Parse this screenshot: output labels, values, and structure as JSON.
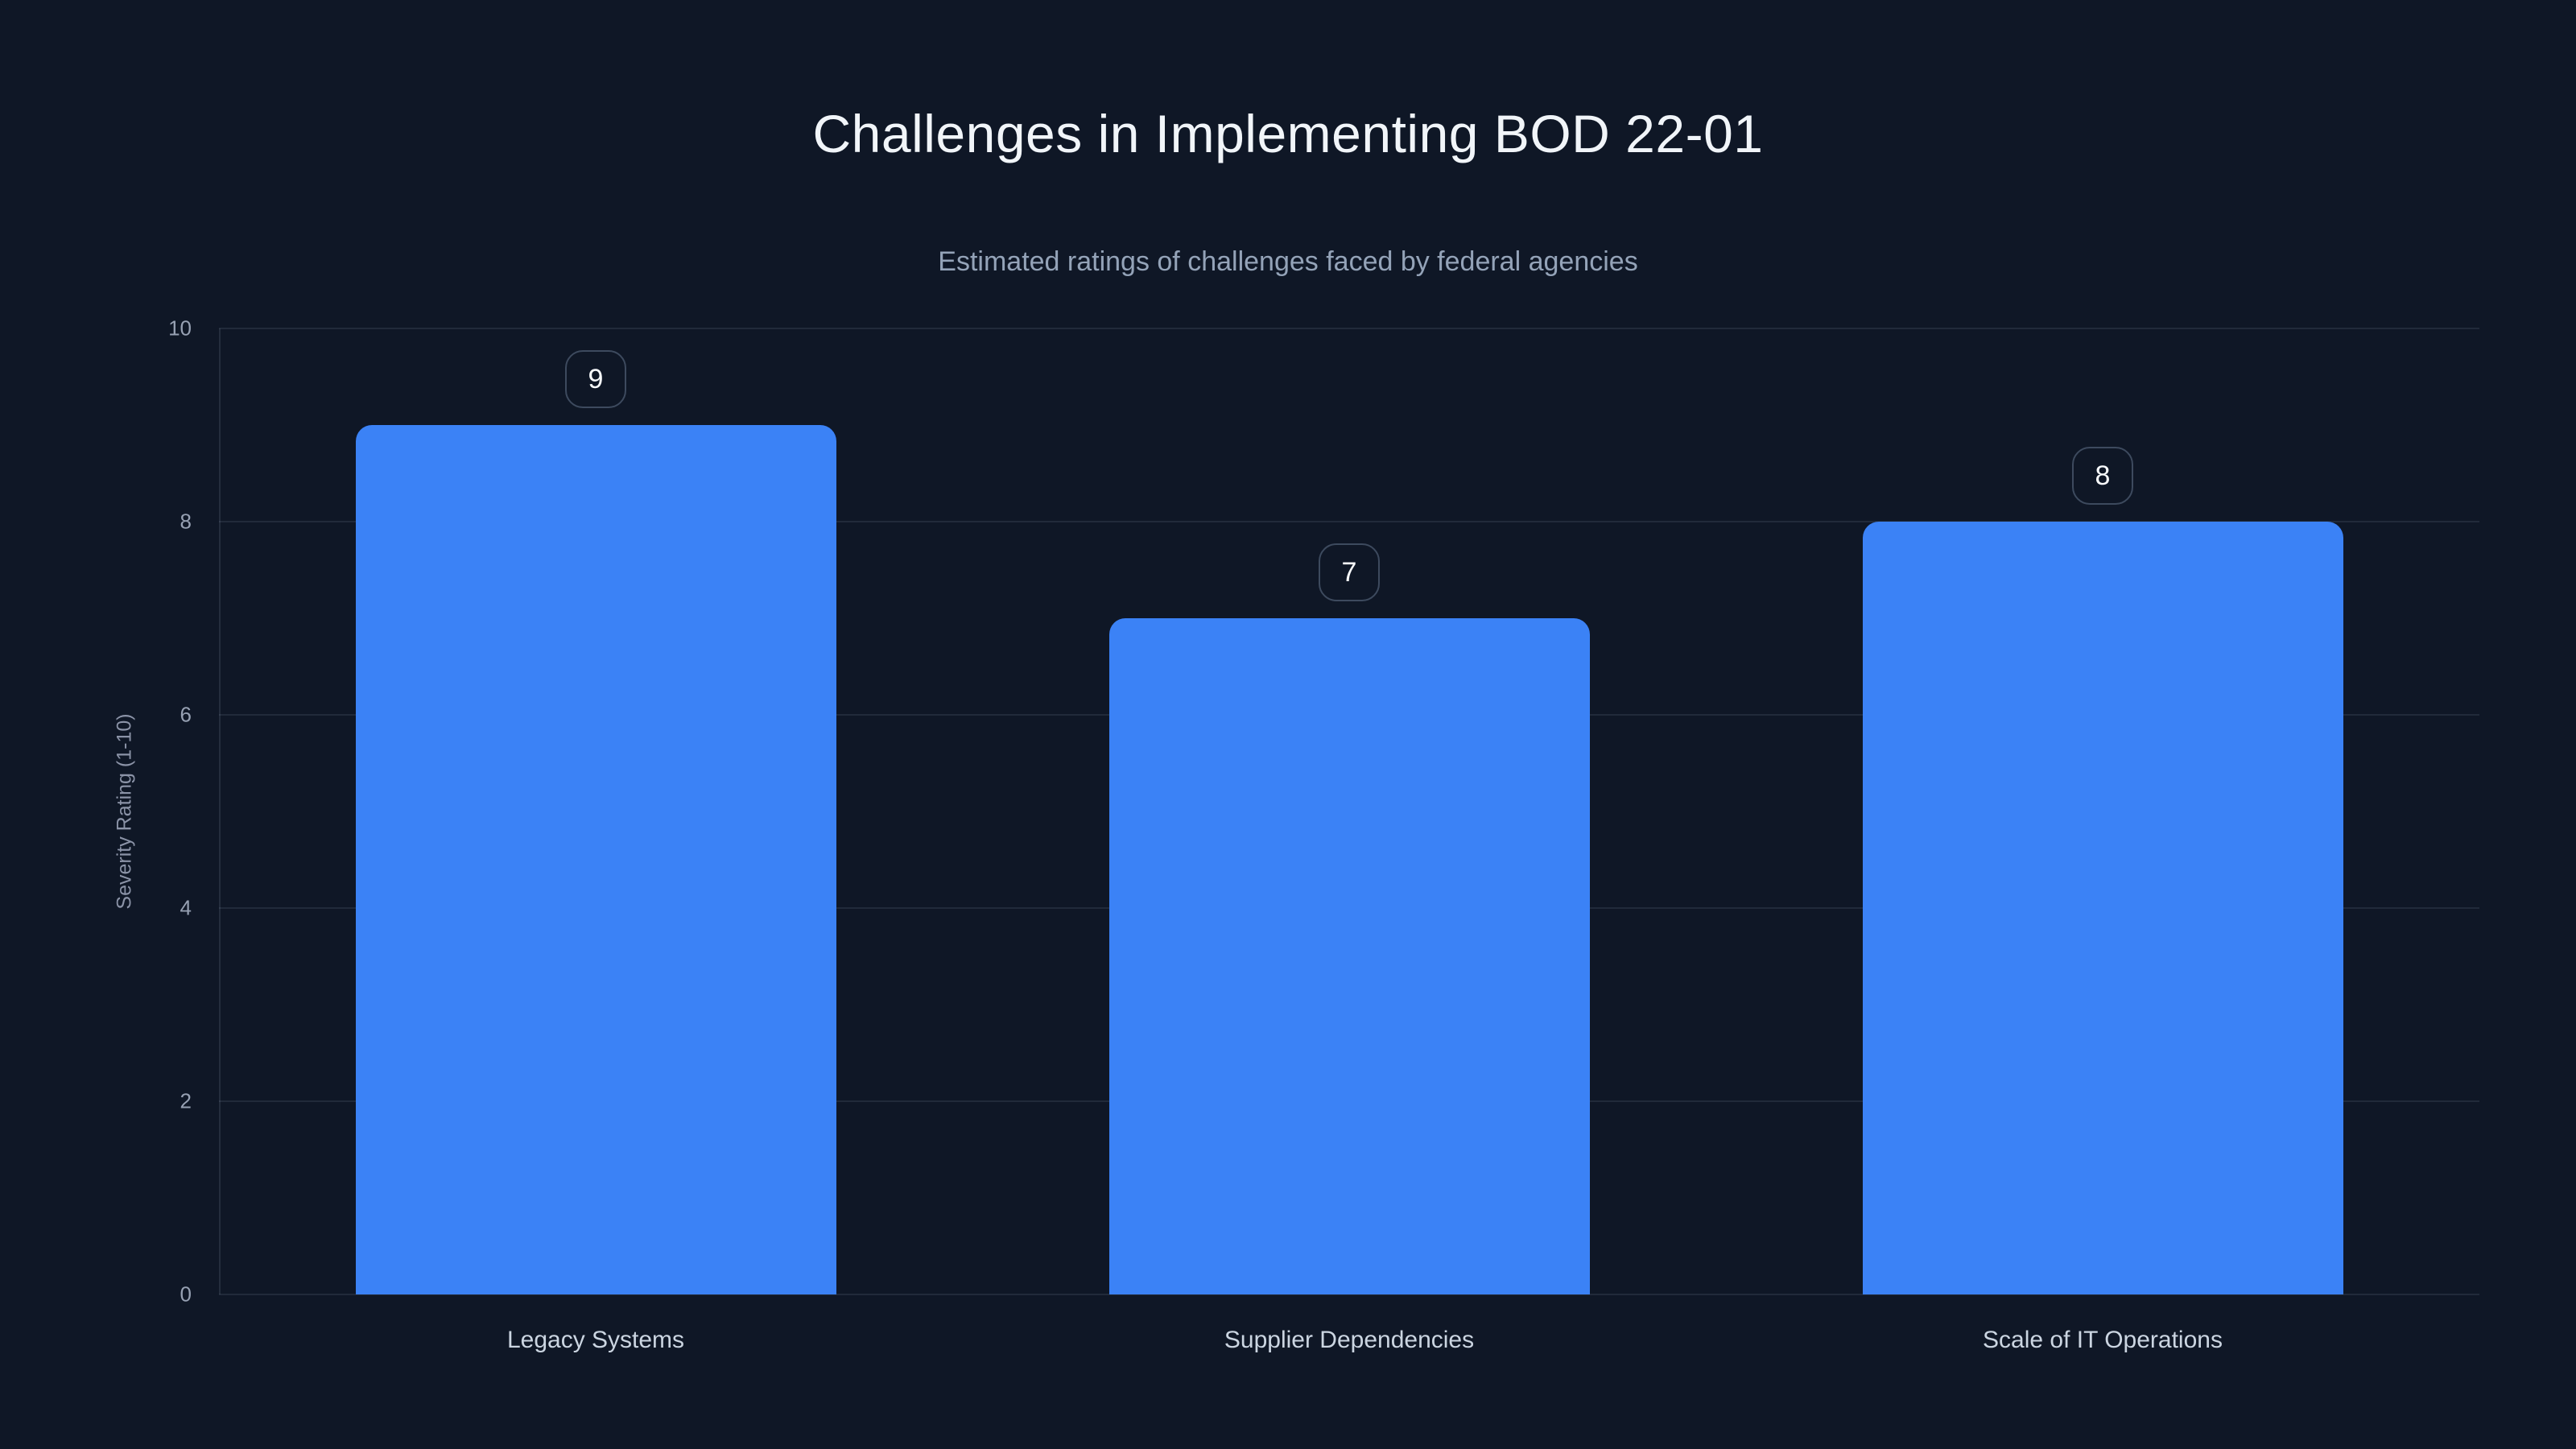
{
  "page": {
    "background_color": "#0f1726",
    "accent_color": "#3b82f6"
  },
  "chart_data": {
    "type": "bar",
    "title": "Challenges in Implementing BOD 22-01",
    "subtitle": "Estimated ratings of challenges faced by federal agencies",
    "categories": [
      "Legacy Systems",
      "Supplier Dependencies",
      "Scale of IT Operations"
    ],
    "values": [
      9,
      7,
      8
    ],
    "value_labels": [
      "9",
      "7",
      "8"
    ],
    "xlabel": "",
    "ylabel": "Severity Rating (1-10)",
    "ylim": [
      0,
      10
    ],
    "yticks": [
      0,
      2,
      4,
      6,
      8,
      10
    ],
    "grid": true,
    "legend_position": "none",
    "bar_color": "#3b82f6",
    "colors": {
      "title": "#f1f5f9",
      "subtitle": "#94a3b8",
      "tick_label": "#97a1b3",
      "category_label": "#cbd5e1",
      "gridline": "rgba(148,163,184,0.14)",
      "badge_border": "#3d4a5e",
      "badge_text": "#f8fafc"
    }
  }
}
